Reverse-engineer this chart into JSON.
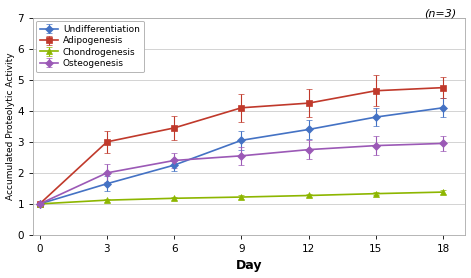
{
  "title_note": "(n=3)",
  "xlabel": "Day",
  "ylabel": "Accumulated Proteolytic Activity",
  "xlim": [
    -0.3,
    19
  ],
  "ylim": [
    0,
    7
  ],
  "yticks": [
    0,
    1,
    2,
    3,
    4,
    5,
    6,
    7
  ],
  "xticks": [
    0,
    3,
    6,
    9,
    12,
    15,
    18
  ],
  "background_color": "#ffffff",
  "plot_bg_color": "#ffffff",
  "series": [
    {
      "label": "Undifferentiation",
      "color": "#4472c4",
      "marker": "D",
      "markersize": 4,
      "x": [
        0,
        3,
        6,
        9,
        12,
        15,
        18
      ],
      "y": [
        1.0,
        1.65,
        2.25,
        3.05,
        3.4,
        3.8,
        4.1
      ],
      "yerr": [
        0.0,
        0.25,
        0.2,
        0.3,
        0.3,
        0.3,
        0.3
      ]
    },
    {
      "label": "Adipogenesis",
      "color": "#c0392b",
      "marker": "s",
      "markersize": 4,
      "x": [
        0,
        3,
        6,
        9,
        12,
        15,
        18
      ],
      "y": [
        1.0,
        3.0,
        3.45,
        4.1,
        4.25,
        4.65,
        4.75
      ],
      "yerr": [
        0.0,
        0.35,
        0.4,
        0.45,
        0.45,
        0.5,
        0.35
      ]
    },
    {
      "label": "Chondrogenesis",
      "color": "#8db600",
      "marker": "^",
      "markersize": 5,
      "x": [
        0,
        3,
        6,
        9,
        12,
        15,
        18
      ],
      "y": [
        1.0,
        1.12,
        1.18,
        1.22,
        1.27,
        1.33,
        1.38
      ],
      "yerr": [
        0.0,
        0.05,
        0.05,
        0.05,
        0.05,
        0.06,
        0.06
      ]
    },
    {
      "label": "Osteogenesis",
      "color": "#9b59b6",
      "marker": "D",
      "markersize": 4,
      "x": [
        0,
        3,
        6,
        9,
        12,
        15,
        18
      ],
      "y": [
        1.0,
        2.0,
        2.4,
        2.55,
        2.75,
        2.88,
        2.95
      ],
      "yerr": [
        0.0,
        0.3,
        0.25,
        0.3,
        0.3,
        0.3,
        0.25
      ]
    }
  ]
}
